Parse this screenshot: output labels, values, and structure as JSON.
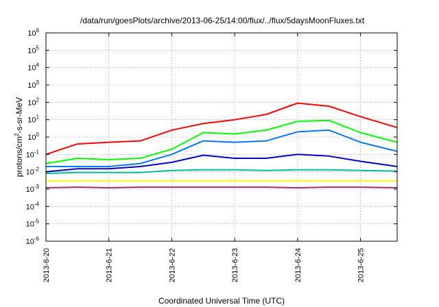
{
  "chart_data": {
    "type": "line",
    "title": "/data/run/goesPlots/archive/2013-06-25/14:00/flux/../flux/5daysMoonFluxes.txt",
    "xlabel": "Coordinated Universal Time (UTC)",
    "ylabel": {
      "prefix": "protons/cm",
      "sup": "2",
      "suffix": "-s-sr-MeV"
    },
    "y_scale": "log",
    "ylim": [
      1e-06,
      1000000.0
    ],
    "xlim": [
      "2013-06-20",
      "2013-06-25 14:00"
    ],
    "grid": true,
    "legend": "none",
    "x_ticks": [
      "2013-6-20",
      "2013-6-21",
      "2013-6-22",
      "2013-6-23",
      "2013-6-24",
      "2013-6-25"
    ],
    "y_ticks": [
      {
        "exp": -6
      },
      {
        "exp": -5
      },
      {
        "exp": -4
      },
      {
        "exp": -3
      },
      {
        "exp": -2
      },
      {
        "exp": -1
      },
      {
        "exp": 0
      },
      {
        "exp": 1
      },
      {
        "exp": 2
      },
      {
        "exp": 3
      },
      {
        "exp": 4
      },
      {
        "exp": 5
      },
      {
        "exp": 6
      }
    ],
    "y_tick_base": "10",
    "x_dates": [
      "2013-06-20 00:00",
      "2013-06-20 12:00",
      "2013-06-21 00:00",
      "2013-06-21 12:00",
      "2013-06-22 00:00",
      "2013-06-22 12:00",
      "2013-06-23 00:00",
      "2013-06-23 12:00",
      "2013-06-24 00:00",
      "2013-06-24 12:00",
      "2013-06-25 00:00",
      "2013-06-25 14:00"
    ],
    "series": [
      {
        "color": "#ff0000",
        "values": [
          0.1,
          0.4,
          0.5,
          0.6,
          2.5,
          6,
          10,
          20,
          90,
          60,
          15,
          3.5
        ]
      },
      {
        "color": "#00ff00",
        "values": [
          0.03,
          0.06,
          0.05,
          0.06,
          0.2,
          1.8,
          1.5,
          2.5,
          8,
          9,
          1.8,
          0.5
        ]
      },
      {
        "color": "#0077ff",
        "values": [
          0.02,
          0.02,
          0.02,
          0.03,
          0.1,
          0.6,
          0.5,
          0.6,
          2,
          2.5,
          0.5,
          0.15
        ]
      },
      {
        "color": "#0000cc",
        "values": [
          0.01,
          0.015,
          0.015,
          0.02,
          0.035,
          0.09,
          0.06,
          0.06,
          0.1,
          0.08,
          0.04,
          0.02
        ]
      },
      {
        "color": "#00c0a0",
        "values": [
          0.008,
          0.009,
          0.009,
          0.009,
          0.012,
          0.013,
          0.013,
          0.012,
          0.013,
          0.013,
          0.012,
          0.011
        ]
      },
      {
        "color": "#ffff00",
        "values": [
          0.003,
          0.003,
          0.003,
          0.003,
          0.003,
          0.003,
          0.003,
          0.003,
          0.003,
          0.003,
          0.003,
          0.003
        ]
      },
      {
        "color": "#993366",
        "values": [
          0.0012,
          0.0013,
          0.0012,
          0.0013,
          0.0013,
          0.0013,
          0.0013,
          0.0013,
          0.0012,
          0.0013,
          0.0013,
          0.0012
        ]
      }
    ]
  }
}
